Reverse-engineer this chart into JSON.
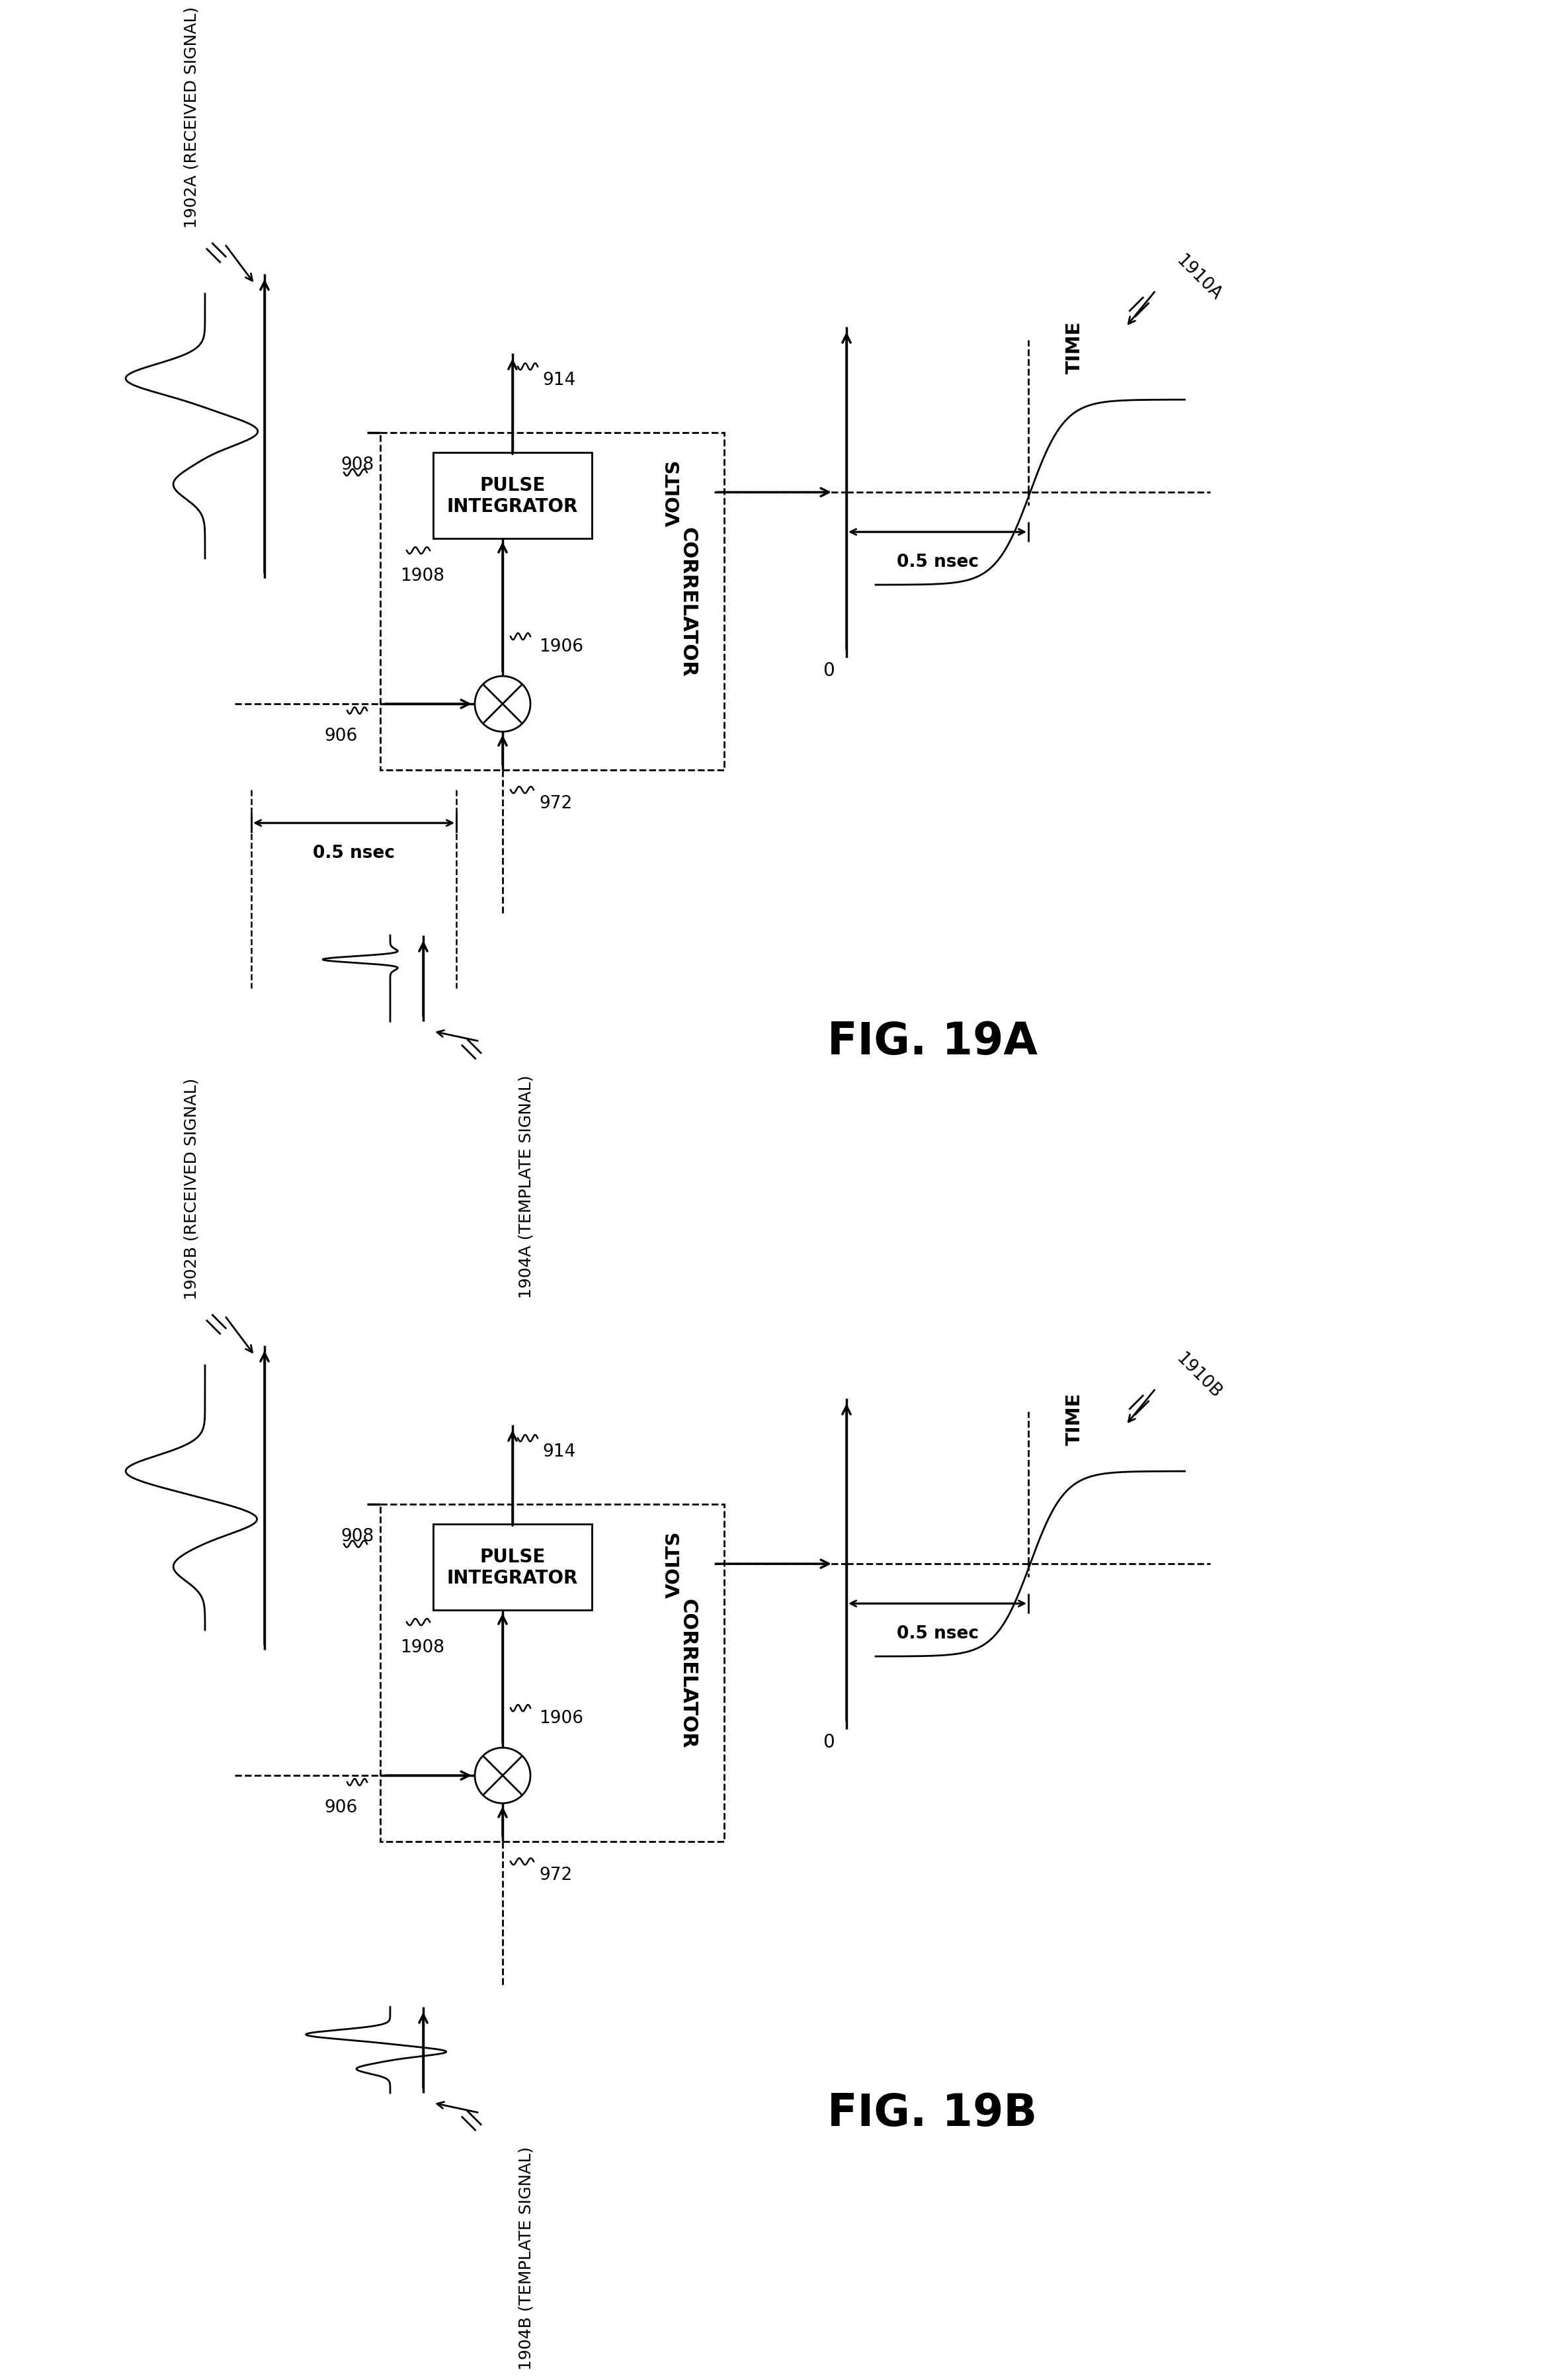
{
  "bg_color": "#ffffff",
  "fig_width": 23.51,
  "fig_height": 32.43,
  "fig19A_label": "FIG. 19A",
  "fig19B_label": "FIG. 19B",
  "correlator_label": "CORRELATOR",
  "ref_1910A": "1910A",
  "ref_1910B": "1910B",
  "ref_914": "914",
  "ref_908": "908",
  "ref_1908": "1908",
  "ref_906": "906",
  "ref_1906": "1906",
  "ref_972": "972",
  "ref_1902A": "1902A (RECEIVED SIGNAL)",
  "ref_1902B": "1902B (RECEIVED SIGNAL)",
  "ref_1904A": "1904A (TEMPLATE SIGNAL)",
  "ref_1904B": "1904B (TEMPLATE SIGNAL)",
  "label_time": "TIME",
  "label_volts": "VOLTS",
  "label_0": "0",
  "label_05nsec": "0.5 nsec",
  "label_pulse_integrator": "PULSE\nINTEGRATOR"
}
